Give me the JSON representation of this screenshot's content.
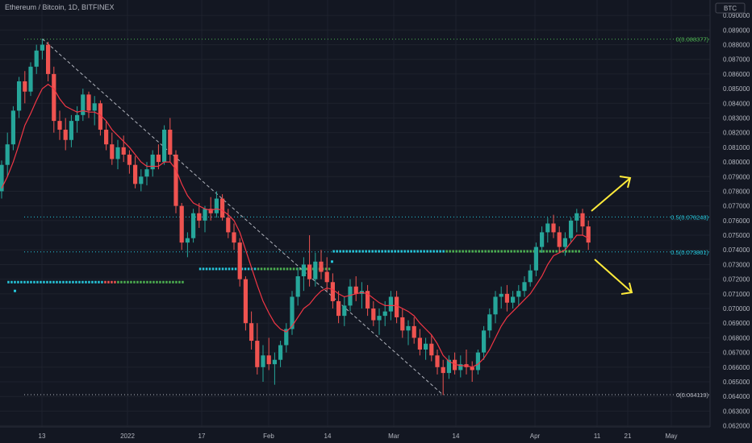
{
  "chart_data": {
    "type": "candlestick",
    "title": "Ethereum / Bitcoin, 1D, BITFINEX",
    "currency": "BTC",
    "ylim": [
      0.0615,
      0.0905
    ],
    "ytick_labels": [
      "0.090000",
      "0.089000",
      "0.088000",
      "0.087000",
      "0.086000",
      "0.085000",
      "0.084000",
      "0.083000",
      "0.082000",
      "0.081000",
      "0.080000",
      "0.079000",
      "0.078000",
      "0.077000",
      "0.076000",
      "0.075000",
      "0.074000",
      "0.073000",
      "0.072000",
      "0.071000",
      "0.070000",
      "0.069000",
      "0.068000",
      "0.067000",
      "0.066000",
      "0.065000",
      "0.064000",
      "0.063000",
      "0.062000"
    ],
    "xtick_labels": [
      "13",
      "2022",
      "17",
      "Feb",
      "14",
      "Mar",
      "14",
      "Apr",
      "11",
      "21",
      "May"
    ],
    "fib_levels": [
      {
        "label": "0(0.088377)",
        "value": 0.088377,
        "color": "#4caf50"
      },
      {
        "label": "0.5(0.076248)",
        "value": 0.076248,
        "color": "#26c6da"
      },
      {
        "label": "0.5(0.073861)",
        "value": 0.073861,
        "color": "#26c6da"
      },
      {
        "label": "0(0.064119)",
        "value": 0.064119,
        "color": "#b2b5be"
      }
    ],
    "ohlc": [
      [
        0.078,
        0.0801,
        0.0775,
        0.0798
      ],
      [
        0.0798,
        0.082,
        0.079,
        0.0812
      ],
      [
        0.0812,
        0.0838,
        0.0808,
        0.0835
      ],
      [
        0.0835,
        0.0858,
        0.083,
        0.0855
      ],
      [
        0.0855,
        0.0862,
        0.084,
        0.0848
      ],
      [
        0.0848,
        0.0868,
        0.0845,
        0.0865
      ],
      [
        0.0865,
        0.088,
        0.086,
        0.0876
      ],
      [
        0.0876,
        0.0884,
        0.087,
        0.088
      ],
      [
        0.088,
        0.0882,
        0.0855,
        0.086
      ],
      [
        0.086,
        0.0865,
        0.082,
        0.0828
      ],
      [
        0.0828,
        0.0835,
        0.0815,
        0.0822
      ],
      [
        0.0822,
        0.083,
        0.0808,
        0.0815
      ],
      [
        0.0815,
        0.0832,
        0.081,
        0.0828
      ],
      [
        0.0828,
        0.0838,
        0.082,
        0.0832
      ],
      [
        0.0832,
        0.085,
        0.0828,
        0.0846
      ],
      [
        0.0846,
        0.0848,
        0.083,
        0.0835
      ],
      [
        0.0835,
        0.0845,
        0.0825,
        0.084
      ],
      [
        0.084,
        0.0842,
        0.0818,
        0.0822
      ],
      [
        0.0822,
        0.0828,
        0.0808,
        0.0812
      ],
      [
        0.0812,
        0.082,
        0.0798,
        0.0802
      ],
      [
        0.0802,
        0.0815,
        0.0795,
        0.081
      ],
      [
        0.081,
        0.0818,
        0.08,
        0.0805
      ],
      [
        0.0805,
        0.0808,
        0.0792,
        0.0798
      ],
      [
        0.0798,
        0.0804,
        0.0782,
        0.0785
      ],
      [
        0.0785,
        0.0795,
        0.078,
        0.079
      ],
      [
        0.079,
        0.08,
        0.0784,
        0.0795
      ],
      [
        0.0795,
        0.0808,
        0.079,
        0.0805
      ],
      [
        0.0805,
        0.0812,
        0.0795,
        0.08
      ],
      [
        0.08,
        0.0825,
        0.0798,
        0.0822
      ],
      [
        0.0822,
        0.083,
        0.08,
        0.0805
      ],
      [
        0.0805,
        0.0808,
        0.0765,
        0.077
      ],
      [
        0.077,
        0.0772,
        0.074,
        0.0745
      ],
      [
        0.0745,
        0.0752,
        0.0735,
        0.0748
      ],
      [
        0.0748,
        0.0768,
        0.0745,
        0.0765
      ],
      [
        0.0765,
        0.0772,
        0.0755,
        0.076
      ],
      [
        0.076,
        0.077,
        0.0752,
        0.0768
      ],
      [
        0.0768,
        0.0776,
        0.076,
        0.0765
      ],
      [
        0.0765,
        0.078,
        0.0762,
        0.0775
      ],
      [
        0.0775,
        0.0778,
        0.076,
        0.0762
      ],
      [
        0.0762,
        0.0768,
        0.0748,
        0.0752
      ],
      [
        0.0752,
        0.0758,
        0.074,
        0.0745
      ],
      [
        0.0745,
        0.0748,
        0.0715,
        0.072
      ],
      [
        0.072,
        0.0722,
        0.0685,
        0.069
      ],
      [
        0.069,
        0.0698,
        0.0672,
        0.0678
      ],
      [
        0.0678,
        0.069,
        0.0655,
        0.066
      ],
      [
        0.066,
        0.0675,
        0.065,
        0.0668
      ],
      [
        0.0668,
        0.068,
        0.0658,
        0.0662
      ],
      [
        0.0662,
        0.067,
        0.0648,
        0.0665
      ],
      [
        0.0665,
        0.0678,
        0.066,
        0.0675
      ],
      [
        0.0675,
        0.069,
        0.067,
        0.0686
      ],
      [
        0.0686,
        0.0712,
        0.0682,
        0.0708
      ],
      [
        0.0708,
        0.0728,
        0.0702,
        0.0722
      ],
      [
        0.0722,
        0.0735,
        0.0712,
        0.073
      ],
      [
        0.073,
        0.075,
        0.0715,
        0.072
      ],
      [
        0.072,
        0.0738,
        0.0715,
        0.0732
      ],
      [
        0.0732,
        0.074,
        0.072,
        0.0725
      ],
      [
        0.0725,
        0.0735,
        0.0712,
        0.0718
      ],
      [
        0.0718,
        0.0724,
        0.07,
        0.0705
      ],
      [
        0.0705,
        0.0712,
        0.069,
        0.0695
      ],
      [
        0.0695,
        0.0708,
        0.0688,
        0.0702
      ],
      [
        0.0702,
        0.072,
        0.0698,
        0.0715
      ],
      [
        0.0715,
        0.0722,
        0.0705,
        0.071
      ],
      [
        0.071,
        0.0718,
        0.07,
        0.0712
      ],
      [
        0.0712,
        0.0716,
        0.0695,
        0.07
      ],
      [
        0.07,
        0.0705,
        0.0688,
        0.0692
      ],
      [
        0.0692,
        0.07,
        0.0682,
        0.0695
      ],
      [
        0.0695,
        0.0705,
        0.0688,
        0.0698
      ],
      [
        0.0698,
        0.0712,
        0.0692,
        0.0708
      ],
      [
        0.0708,
        0.0712,
        0.069,
        0.0694
      ],
      [
        0.0694,
        0.07,
        0.068,
        0.0685
      ],
      [
        0.0685,
        0.0692,
        0.0675,
        0.0688
      ],
      [
        0.0688,
        0.0694,
        0.0676,
        0.068
      ],
      [
        0.068,
        0.0686,
        0.0668,
        0.0672
      ],
      [
        0.0672,
        0.068,
        0.0665,
        0.0676
      ],
      [
        0.0676,
        0.0682,
        0.0664,
        0.0668
      ],
      [
        0.0668,
        0.0672,
        0.0655,
        0.066
      ],
      [
        0.066,
        0.0665,
        0.0641,
        0.0656
      ],
      [
        0.0656,
        0.0668,
        0.0652,
        0.0665
      ],
      [
        0.0665,
        0.067,
        0.0655,
        0.0658
      ],
      [
        0.0658,
        0.0668,
        0.0653,
        0.0662
      ],
      [
        0.0662,
        0.0672,
        0.0655,
        0.066
      ],
      [
        0.066,
        0.0664,
        0.065,
        0.0658
      ],
      [
        0.0658,
        0.0672,
        0.0655,
        0.067
      ],
      [
        0.067,
        0.0688,
        0.0665,
        0.0685
      ],
      [
        0.0685,
        0.07,
        0.068,
        0.0696
      ],
      [
        0.0696,
        0.0712,
        0.069,
        0.0708
      ],
      [
        0.0708,
        0.0715,
        0.07,
        0.071
      ],
      [
        0.071,
        0.0716,
        0.0698,
        0.0704
      ],
      [
        0.0704,
        0.0712,
        0.07,
        0.0708
      ],
      [
        0.0708,
        0.0716,
        0.0702,
        0.0712
      ],
      [
        0.0712,
        0.0722,
        0.0708,
        0.0718
      ],
      [
        0.0718,
        0.073,
        0.0715,
        0.0726
      ],
      [
        0.0726,
        0.0745,
        0.0722,
        0.0742
      ],
      [
        0.0742,
        0.0756,
        0.0738,
        0.0752
      ],
      [
        0.0752,
        0.0762,
        0.0745,
        0.0758
      ],
      [
        0.0758,
        0.0764,
        0.0748,
        0.0752
      ],
      [
        0.0752,
        0.0756,
        0.0738,
        0.0742
      ],
      [
        0.0742,
        0.0752,
        0.0736,
        0.0748
      ],
      [
        0.0748,
        0.0762,
        0.0745,
        0.076
      ],
      [
        0.076,
        0.0768,
        0.0752,
        0.0765
      ],
      [
        0.0765,
        0.0768,
        0.075,
        0.0756
      ],
      [
        0.0756,
        0.076,
        0.074,
        0.0745
      ]
    ],
    "ma": [
      0.0782,
      0.079,
      0.08,
      0.0812,
      0.0825,
      0.0833,
      0.0842,
      0.085,
      0.0853,
      0.085,
      0.0843,
      0.0838,
      0.0836,
      0.0834,
      0.0835,
      0.0834,
      0.0834,
      0.0832,
      0.0828,
      0.0822,
      0.0818,
      0.0814,
      0.081,
      0.0805,
      0.08,
      0.0797,
      0.0797,
      0.0797,
      0.08,
      0.08,
      0.0795,
      0.0785,
      0.0777,
      0.0772,
      0.077,
      0.0768,
      0.0767,
      0.0768,
      0.0767,
      0.0764,
      0.076,
      0.0752,
      0.074,
      0.0728,
      0.0716,
      0.0705,
      0.0697,
      0.069,
      0.0686,
      0.0684,
      0.0688,
      0.0694,
      0.07,
      0.0703,
      0.0708,
      0.0712,
      0.0714,
      0.0713,
      0.071,
      0.0708,
      0.0709,
      0.071,
      0.0711,
      0.071,
      0.0707,
      0.0704,
      0.0702,
      0.0702,
      0.0702,
      0.07,
      0.0698,
      0.0695,
      0.069,
      0.0686,
      0.0682,
      0.0676,
      0.0668,
      0.0664,
      0.0662,
      0.0661,
      0.0661,
      0.066,
      0.0662,
      0.0666,
      0.0672,
      0.068,
      0.0688,
      0.0694,
      0.0698,
      0.0702,
      0.0706,
      0.071,
      0.0716,
      0.0722,
      0.073,
      0.0736,
      0.0738,
      0.074,
      0.0745,
      0.075,
      0.075,
      0.0748
    ],
    "dot_lines": [
      {
        "start": 1,
        "end": 31,
        "value": 0.0718,
        "colors": [
          "#26c6da",
          "#ef5350",
          "#4caf50"
        ]
      },
      {
        "start": 34,
        "end": 56,
        "value": 0.0727,
        "colors": [
          "#26c6da",
          "#4caf50"
        ]
      },
      {
        "start": 57,
        "end": 99,
        "value": 0.0739,
        "colors": [
          "#26c6da",
          "#4caf50"
        ]
      }
    ],
    "trendline": {
      "from": [
        7,
        0.0884
      ],
      "to": [
        76,
        0.0641
      ]
    }
  }
}
